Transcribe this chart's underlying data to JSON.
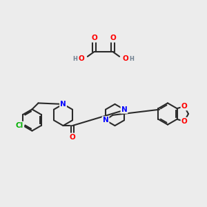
{
  "bg_color": "#ececec",
  "bond_color": "#2a2a2a",
  "bond_lw": 1.5,
  "atom_colors": {
    "N": "#0000ff",
    "O": "#ff0000",
    "Cl": "#00b000",
    "H": "#708090",
    "C": "#2a2a2a"
  },
  "font_size": 7.5,
  "title": ""
}
